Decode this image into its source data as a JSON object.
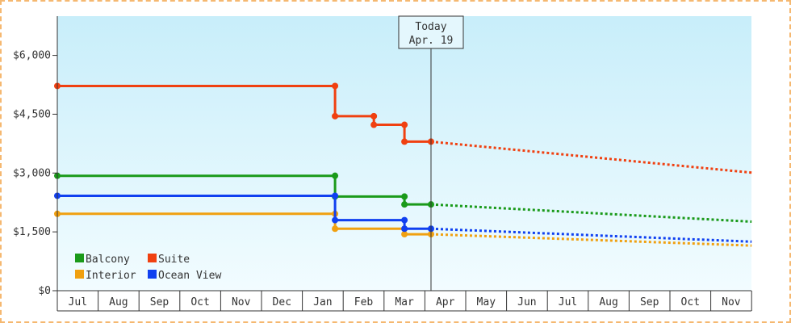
{
  "chart_data": {
    "type": "line",
    "title": "",
    "xlabel": "",
    "ylabel": "",
    "ylim": [
      0,
      7000
    ],
    "y_ticks": [
      0,
      1500,
      3000,
      4500,
      6000
    ],
    "y_tick_labels": [
      "$0",
      "$1,500",
      "$3,000",
      "$4,500",
      "$6,000"
    ],
    "x_tick_labels": [
      "Jul",
      "Aug",
      "Sep",
      "Oct",
      "Nov",
      "Dec",
      "Jan",
      "Feb",
      "Mar",
      "Apr",
      "May",
      "Jun",
      "Jul",
      "Aug",
      "Sep",
      "Oct",
      "Nov"
    ],
    "grid": false,
    "legend_placement": "bottom-left",
    "today_marker": {
      "line1": "Today",
      "line2": "Apr. 19",
      "x": 9.15
    },
    "series": [
      {
        "name": "Balcony",
        "color": "#1a9a1a",
        "step_points": [
          [
            0,
            2930
          ],
          [
            6.8,
            2930
          ],
          [
            6.8,
            2400
          ],
          [
            8.5,
            2400
          ],
          [
            8.5,
            2200
          ],
          [
            9.15,
            2200
          ]
        ],
        "forecast": [
          [
            9.15,
            2200
          ],
          [
            17,
            1760
          ]
        ]
      },
      {
        "name": "Suite",
        "color": "#f04010",
        "step_points": [
          [
            0,
            5220
          ],
          [
            6.8,
            5220
          ],
          [
            6.8,
            4450
          ],
          [
            7.75,
            4450
          ],
          [
            7.75,
            4230
          ],
          [
            8.5,
            4230
          ],
          [
            8.5,
            3800
          ],
          [
            9.15,
            3800
          ]
        ],
        "forecast": [
          [
            9.15,
            3800
          ],
          [
            17,
            3010
          ]
        ]
      },
      {
        "name": "Interior",
        "color": "#f0a010",
        "step_points": [
          [
            0,
            1960
          ],
          [
            6.8,
            1960
          ],
          [
            6.8,
            1580
          ],
          [
            8.5,
            1580
          ],
          [
            8.5,
            1440
          ],
          [
            9.15,
            1440
          ]
        ],
        "forecast": [
          [
            9.15,
            1440
          ],
          [
            17,
            1150
          ]
        ]
      },
      {
        "name": "Ocean View",
        "color": "#1040f0",
        "step_points": [
          [
            0,
            2420
          ],
          [
            6.8,
            2420
          ],
          [
            6.8,
            1800
          ],
          [
            8.5,
            1800
          ],
          [
            8.5,
            1580
          ],
          [
            9.15,
            1580
          ]
        ],
        "forecast": [
          [
            9.15,
            1580
          ],
          [
            17,
            1250
          ]
        ]
      }
    ]
  }
}
